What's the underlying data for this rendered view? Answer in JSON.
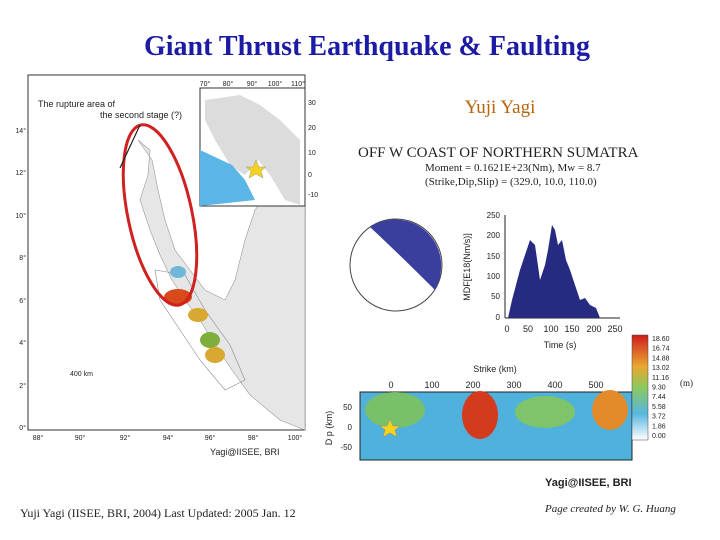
{
  "slide": {
    "title": "Giant Thrust Earthquake & Faulting",
    "author": "Yuji Yagi",
    "footer_left": "Yuji Yagi (IISEE, BRI, 2004) Last Updated: 2005 Jan. 12",
    "footer_right": "Page created by W. G. Huang"
  },
  "map": {
    "annotation_lines": [
      "The rupture area of",
      "the second stage (?)"
    ],
    "lat_labels": [
      "14°",
      "12°",
      "10°",
      "8°",
      "6°",
      "4°",
      "2°",
      "0°"
    ],
    "lon_labels": [
      "88°",
      "90°",
      "92°",
      "94°",
      "96°",
      "98°",
      "100°"
    ],
    "scale": "400 km",
    "credit": "Yagi@IISEE, BRI",
    "inset_lon_labels": [
      "70°",
      "80°",
      "90°",
      "100°",
      "110°"
    ],
    "inset_lat_labels": [
      "30",
      "20",
      "10",
      "0",
      "-10"
    ]
  },
  "solution": {
    "region": "OFF W COAST OF NORTHERN SUMATRA",
    "moment": "Moment = 0.1621E+23(Nm), Mw = 8.7",
    "mechanism": "(Strike,Dip,Slip) = (329.0, 10.0, 110.0)",
    "mrf_ylabel": "MDF[E18(Nm/s)]",
    "mrf_yticks": [
      "250",
      "200",
      "150",
      "100",
      "50",
      "0"
    ],
    "mrf_xticks": [
      "0",
      "50",
      "100",
      "150",
      "200",
      "250"
    ],
    "mrf_xlabel": "Time (s)",
    "strike_label": "Strike (km)",
    "strike_ticks": [
      "0",
      "100",
      "200",
      "300",
      "400",
      "500"
    ],
    "dip_label": "D p (km)",
    "dip_ticks": [
      "50",
      "0",
      "-50"
    ],
    "slip_scale": [
      "18.60",
      "16.74",
      "14.88",
      "13.02",
      "11.16",
      "9.30",
      "7.44",
      "5.58",
      "3.72",
      "1.86",
      "0.00"
    ],
    "slip_unit": "(m)",
    "credit": "Yagi@IISEE, BRI"
  }
}
